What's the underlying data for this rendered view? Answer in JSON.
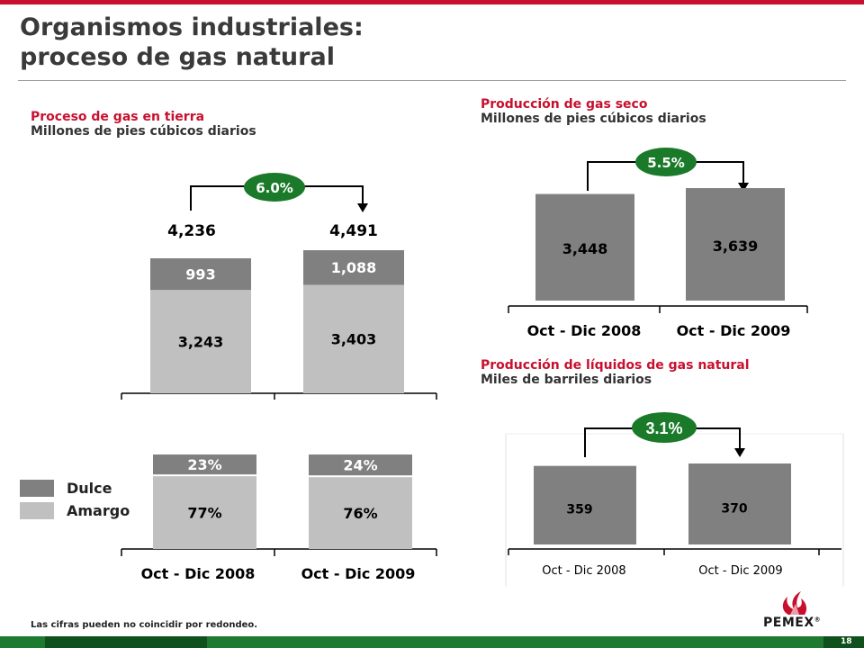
{
  "slide": {
    "title_line1": "Organismos industriales:",
    "title_line2": "proceso de gas natural",
    "footnote": "Las cifras pueden no coincidir por redondeo.",
    "page_number": "18",
    "logo_text": "PEMEX",
    "logo_mark": "®"
  },
  "colors": {
    "accent_red": "#c8102e",
    "dulce": "#808080",
    "amargo": "#c0c0c0",
    "bar_dark": "#808080",
    "badge_green": "#1a7a2a",
    "footer_green": "#1e7a2e"
  },
  "legend": {
    "items": [
      {
        "label": "Dulce",
        "color": "#808080"
      },
      {
        "label": "Amargo",
        "color": "#c0c0c0"
      }
    ]
  },
  "chart_data": [
    {
      "id": "proceso",
      "type": "bar",
      "stacked": true,
      "title": "Proceso de gas en tierra",
      "subtitle": "Millones de pies cúbicos diarios",
      "categories": [
        "Oct - Dic 2008",
        "Oct - Dic 2009"
      ],
      "series": [
        {
          "name": "Amargo",
          "values": [
            3243,
            3403
          ],
          "labels": [
            "3,243",
            "3,403"
          ]
        },
        {
          "name": "Dulce",
          "values": [
            993,
            1088
          ],
          "labels": [
            "993",
            "1,088"
          ]
        }
      ],
      "totals": [
        "4,236",
        "4,491"
      ],
      "change": "6.0%",
      "ylim": [
        0,
        4700
      ]
    },
    {
      "id": "mezcla",
      "type": "bar",
      "stacked": true,
      "categories": [
        "Oct - Dic 2008",
        "Oct - Dic 2009"
      ],
      "series": [
        {
          "name": "Amargo",
          "values": [
            77,
            76
          ],
          "labels": [
            "77%",
            "76%"
          ]
        },
        {
          "name": "Dulce",
          "values": [
            23,
            24
          ],
          "labels": [
            "23%",
            "24%"
          ]
        }
      ],
      "ylim": [
        0,
        100
      ]
    },
    {
      "id": "gas_seco",
      "type": "bar",
      "title": "Producción de gas seco",
      "subtitle": "Millones de pies cúbicos diarios",
      "categories": [
        "Oct - Dic 2008",
        "Oct - Dic 2009"
      ],
      "values": [
        3448,
        3639
      ],
      "labels": [
        "3,448",
        "3,639"
      ],
      "change": "5.5%",
      "ylim": [
        0,
        3900
      ]
    },
    {
      "id": "liquidos",
      "type": "bar",
      "title": "Producción de líquidos de gas natural",
      "subtitle": "Miles de barriles diarios",
      "categories": [
        "Oct - Dic 2008",
        "Oct - Dic 2009"
      ],
      "values": [
        359,
        370
      ],
      "labels": [
        "359",
        "370"
      ],
      "change": "3.1%",
      "ylim": [
        0,
        425
      ]
    }
  ]
}
